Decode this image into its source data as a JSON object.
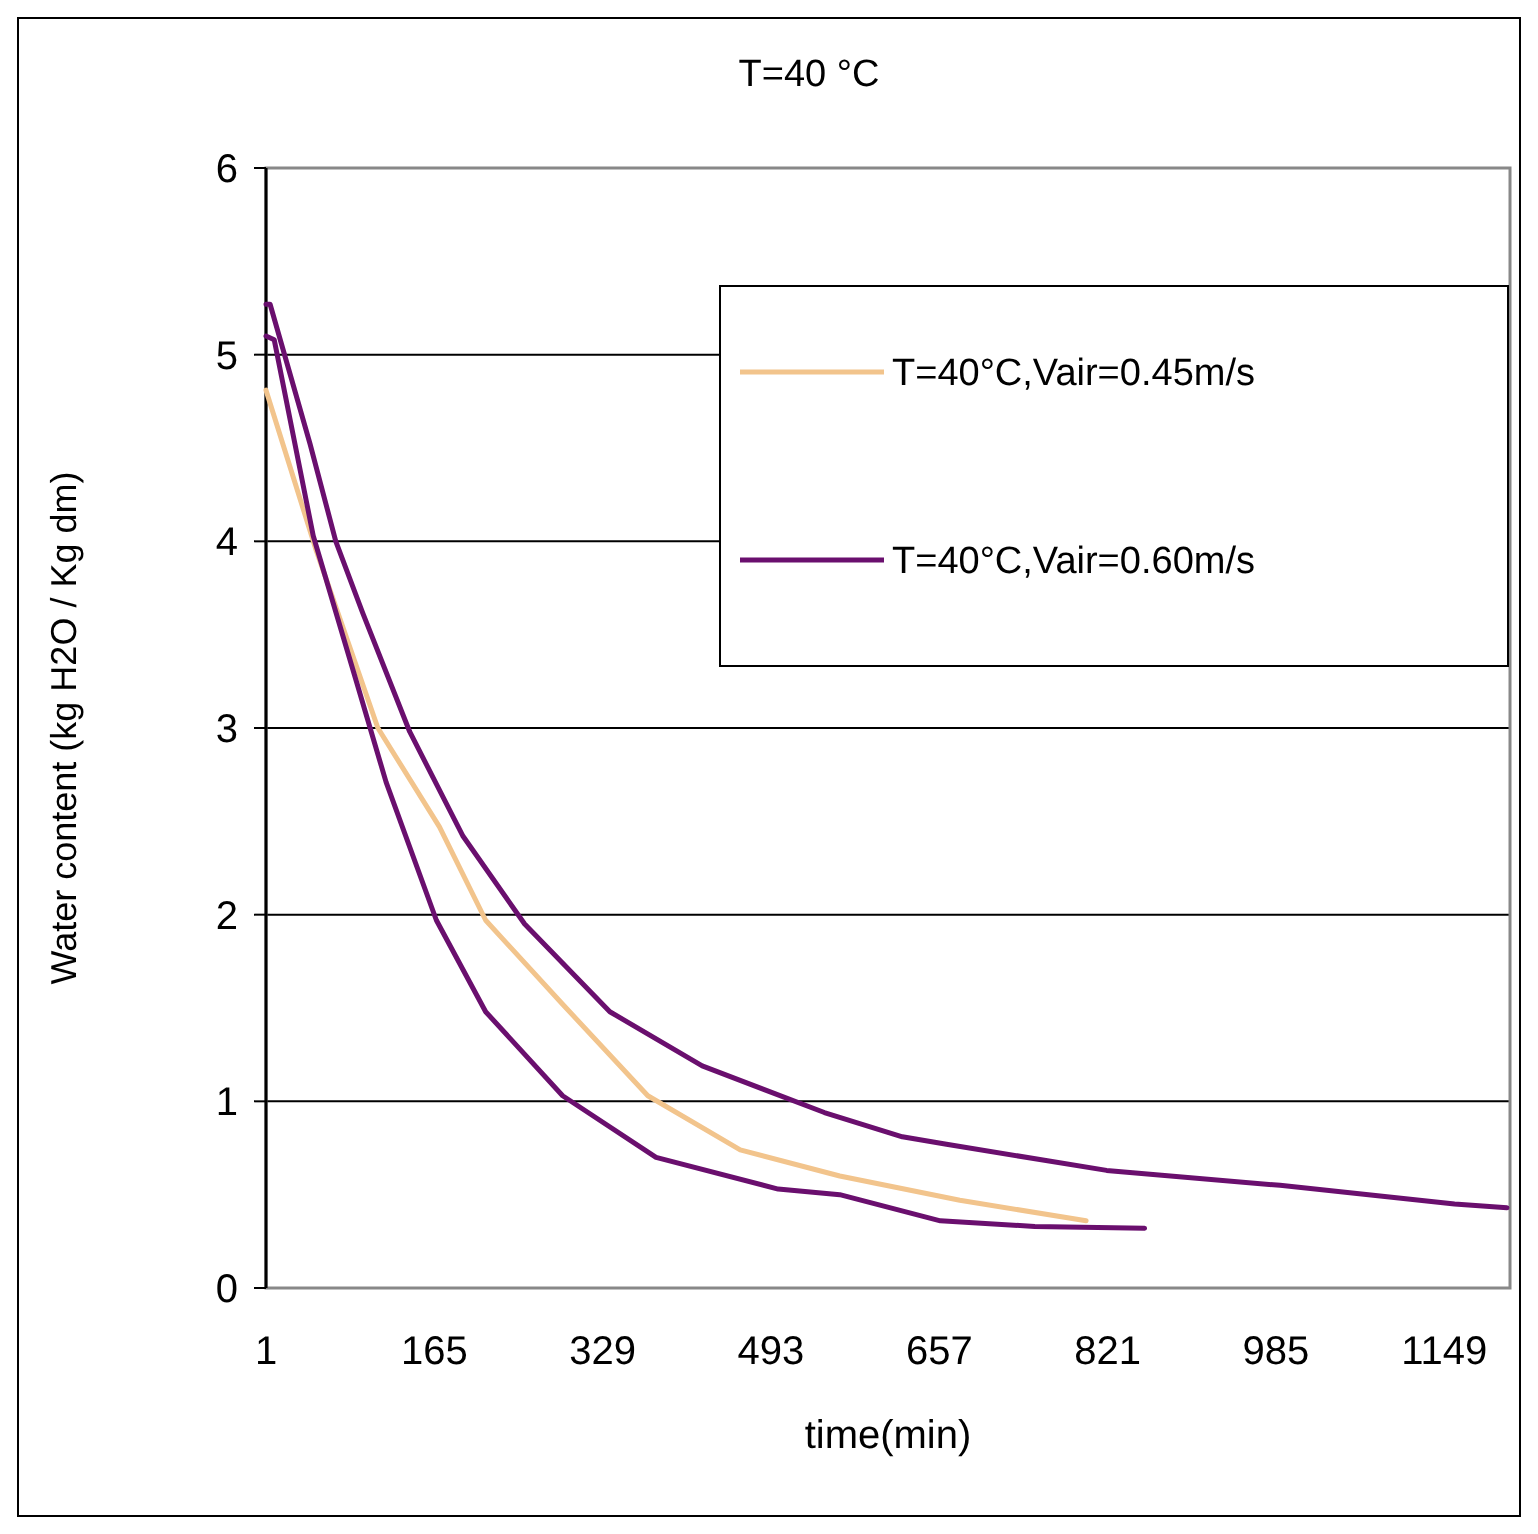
{
  "chart_data": {
    "type": "line",
    "title": "T=40 °C",
    "xlabel": "time(min)",
    "ylabel": "Water content (kg H2O / Kg dm)",
    "xlim": [
      1,
      1213
    ],
    "xticks": [
      1,
      165,
      329,
      493,
      657,
      821,
      985,
      1149
    ],
    "ylim": [
      0,
      6
    ],
    "yticks": [
      0,
      1,
      2,
      3,
      4,
      5,
      6
    ],
    "grid": "y",
    "legend": "top right",
    "series": [
      {
        "name": "T=40°C,Vair=0.45m/s",
        "color": "#f2c48c",
        "x": [
          1,
          50,
          110,
          170,
          215,
          290,
          373,
          463,
          560,
          677,
          800
        ],
        "values": [
          4.81,
          3.95,
          3.0,
          2.47,
          1.97,
          1.52,
          1.03,
          0.74,
          0.6,
          0.47,
          0.36
        ]
      },
      {
        "name": "T=40°C,Vair=0.60m/s",
        "color": "#6a0f6e",
        "x": [
          1,
          9,
          47,
          89,
          118,
          167,
          215,
          290,
          381,
          500,
          560,
          658,
          750,
          857
        ],
        "values": [
          5.1,
          5.08,
          4.03,
          3.25,
          2.71,
          1.97,
          1.48,
          1.03,
          0.7,
          0.53,
          0.5,
          0.36,
          0.33,
          0.32
        ]
      },
      {
        "color": "#6a0f6e",
        "x": [
          1,
          5,
          44,
          69,
          95,
          141,
          193,
          253,
          336,
          426,
          545,
          621,
          664,
          820,
          989,
          1159,
          1210
        ],
        "values": [
          5.27,
          5.27,
          4.52,
          4.0,
          3.62,
          2.98,
          2.42,
          1.95,
          1.48,
          1.19,
          0.94,
          0.81,
          0.77,
          0.63,
          0.55,
          0.45,
          0.43
        ]
      }
    ]
  }
}
